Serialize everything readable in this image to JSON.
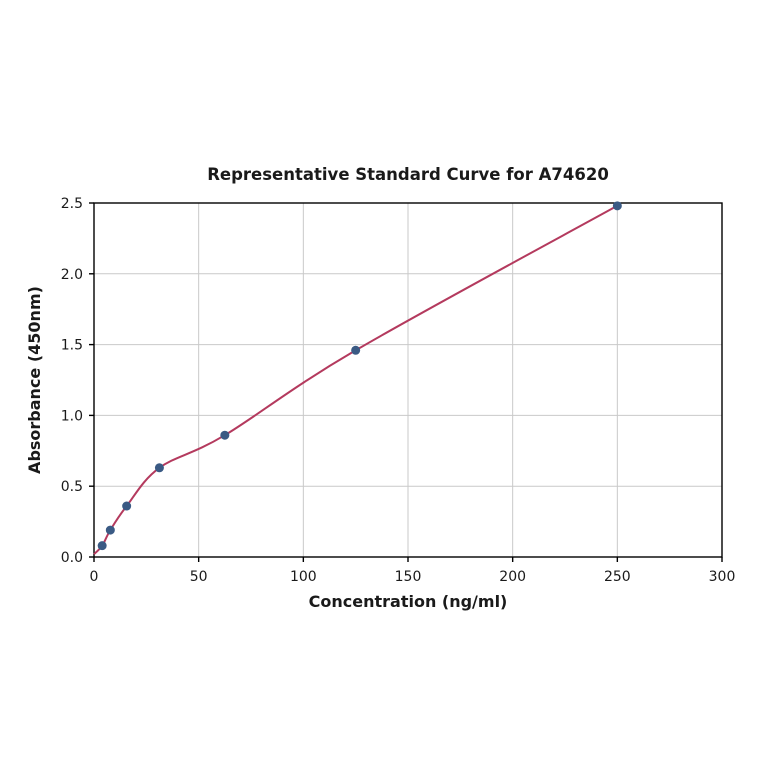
{
  "chart_data": {
    "type": "scatter",
    "title": "Representative Standard Curve for A74620",
    "xlabel": "Concentration (ng/ml)",
    "ylabel": "Absorbance (450nm)",
    "xlim": [
      0,
      300
    ],
    "ylim": [
      0,
      2.5
    ],
    "xticks": [
      0,
      50,
      100,
      150,
      200,
      250,
      300
    ],
    "xtick_labels": [
      "0",
      "50",
      "100",
      "150",
      "200",
      "250",
      "300"
    ],
    "yticks": [
      0,
      0.5,
      1.0,
      1.5,
      2.0,
      2.5
    ],
    "ytick_labels": [
      "0.0",
      "0.5",
      "1.0",
      "1.5",
      "2.0",
      "2.5"
    ],
    "grid": true,
    "legend": "none",
    "points": [
      [
        3.9,
        0.08
      ],
      [
        7.8,
        0.19
      ],
      [
        15.6,
        0.36
      ],
      [
        31.25,
        0.63
      ],
      [
        62.5,
        0.86
      ],
      [
        125,
        1.46
      ],
      [
        250,
        2.48
      ]
    ],
    "curve_start": [
      0,
      0.02
    ],
    "colors": {
      "curve": "#b43a5e",
      "point": "#3a5a84",
      "grid": "#c9c9c9",
      "axis": "#000000",
      "background": "#ffffff"
    }
  }
}
